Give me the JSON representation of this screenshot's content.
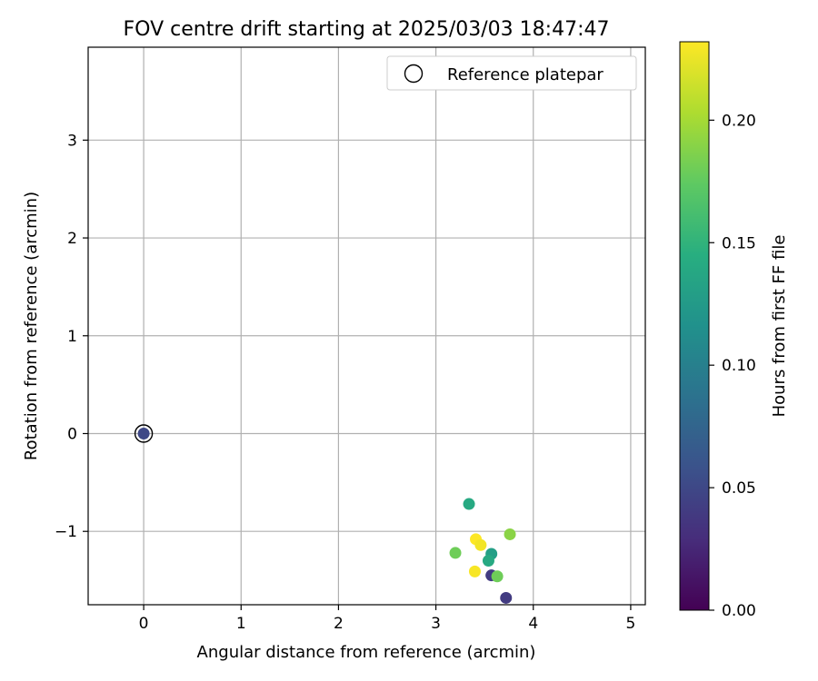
{
  "chart_data": {
    "type": "scatter",
    "title": "FOV centre drift starting at 2025/03/03 18:47:47",
    "xlabel": "Angular distance from reference (arcmin)",
    "ylabel": "Rotation from reference (arcmin)",
    "xlim": [
      -0.57,
      5.15
    ],
    "ylim": [
      -1.75,
      3.95
    ],
    "x_ticks": [
      0,
      1,
      2,
      3,
      4,
      5
    ],
    "y_ticks": [
      -1,
      0,
      1,
      2,
      3
    ],
    "grid": true,
    "legend": {
      "placement": "top-right",
      "entries": [
        "Reference platepar"
      ]
    },
    "reference_point": {
      "x": 0,
      "y": 0
    },
    "colorbar": {
      "label": "Hours from first FF file",
      "colormap": "viridis",
      "range": [
        0.0,
        0.232
      ],
      "ticks": [
        0.0,
        0.05,
        0.1,
        0.15,
        0.2
      ],
      "tick_labels": [
        "0.00",
        "0.05",
        "0.10",
        "0.15",
        "0.20"
      ]
    },
    "points": [
      {
        "x": 0.0,
        "y": 0.0,
        "hours": 0.05
      },
      {
        "x": 3.34,
        "y": -0.72,
        "hours": 0.14
      },
      {
        "x": 3.76,
        "y": -1.03,
        "hours": 0.19
      },
      {
        "x": 3.41,
        "y": -1.08,
        "hours": 0.232
      },
      {
        "x": 3.46,
        "y": -1.14,
        "hours": 0.228
      },
      {
        "x": 3.2,
        "y": -1.22,
        "hours": 0.18
      },
      {
        "x": 3.57,
        "y": -1.23,
        "hours": 0.13
      },
      {
        "x": 3.54,
        "y": -1.3,
        "hours": 0.14
      },
      {
        "x": 3.4,
        "y": -1.41,
        "hours": 0.23
      },
      {
        "x": 3.57,
        "y": -1.45,
        "hours": 0.04
      },
      {
        "x": 3.63,
        "y": -1.46,
        "hours": 0.18
      },
      {
        "x": 3.72,
        "y": -1.68,
        "hours": 0.04
      }
    ]
  }
}
